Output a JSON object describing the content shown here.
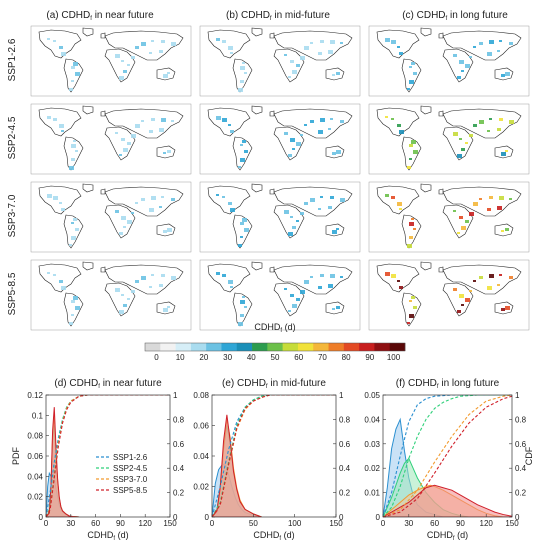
{
  "columns": [
    "(a) CDHD",
    "(b) CDHD",
    "(c) CDHD"
  ],
  "column_suffix": [
    " in near future",
    " in mid-future",
    " in long future"
  ],
  "column_sub": "f",
  "rows": [
    "SSP1-2.6",
    "SSP2-4.5",
    "SSP3-7.0",
    "SSP5-8.5"
  ],
  "colorbar": {
    "title": "CDHD",
    "title_sub": "f",
    "title_unit": " (d)",
    "ticks": [
      "0",
      "10",
      "20",
      "30",
      "40",
      "50",
      "60",
      "70",
      "80",
      "90",
      "100"
    ],
    "colors": [
      "#d9d9d9",
      "#f2f2f2",
      "#d6eef7",
      "#a9dcef",
      "#6cc2e3",
      "#2fa6d6",
      "#1b8fb8",
      "#2c9c4e",
      "#6cc04a",
      "#c6dc3a",
      "#f1e23a",
      "#f4b73a",
      "#ee7d28",
      "#e34a24",
      "#c81e1e",
      "#8e0f12",
      "#5a0808"
    ]
  },
  "maps": {
    "intensity": [
      [
        1,
        1,
        2
      ],
      [
        1,
        2,
        5
      ],
      [
        1,
        2,
        7
      ],
      [
        1,
        2,
        9
      ]
    ]
  },
  "chart_data": [
    {
      "type": "line",
      "title": "(d) CDHD",
      "title_sub": "f",
      "title_suffix": " in near future",
      "xlabel": "CDHD",
      "xlabel_sub": "f",
      "xlabel_unit": " (d)",
      "ylabel_left": "PDF",
      "ylabel_right": "",
      "xlim": [
        0,
        150
      ],
      "ylim": [
        0,
        0.12
      ],
      "y2lim": [
        0,
        1
      ],
      "xticks": [
        "0",
        "30",
        "60",
        "90",
        "120",
        "150"
      ],
      "yticks": [
        "0",
        "0.02",
        "0.04",
        "0.06",
        "0.08",
        "0.1",
        "0.12"
      ],
      "y2ticks": [
        "0",
        "0.2",
        "0.4",
        "0.6",
        "0.8",
        "1"
      ],
      "legend_position": "center-right",
      "series": [
        {
          "name": "SSP1-2.6",
          "color": "#2a8fd0",
          "fill": "#9ecbef",
          "pdf": {
            "x": [
              0,
              2,
              4,
              6,
              8,
              10,
              12,
              14,
              16,
              18,
              20,
              24,
              28,
              32,
              40
            ],
            "y": [
              0,
              0.03,
              0.043,
              0.04,
              0.045,
              0.038,
              0.028,
              0.02,
              0.012,
              0.008,
              0.005,
              0.003,
              0.001,
              0.0005,
              0
            ]
          },
          "cdf": {
            "x": [
              0,
              5,
              10,
              15,
              20,
              25,
              30,
              40,
              50,
              60,
              150
            ],
            "y": [
              0,
              0.2,
              0.45,
              0.65,
              0.8,
              0.9,
              0.95,
              0.99,
              1,
              1,
              1
            ]
          }
        },
        {
          "name": "SSP2-4.5",
          "color": "#2fd07a",
          "fill": "#9ee8b8",
          "pdf": {
            "x": [
              0,
              4,
              6,
              8,
              10,
              12,
              14,
              16,
              18,
              20,
              24,
              28,
              32,
              40
            ],
            "y": [
              0,
              0.005,
              0.03,
              0.075,
              0.09,
              0.06,
              0.035,
              0.018,
              0.01,
              0.006,
              0.003,
              0.001,
              0.0005,
              0
            ]
          },
          "cdf": {
            "x": [
              0,
              5,
              10,
              15,
              20,
              25,
              30,
              40,
              50,
              60,
              150
            ],
            "y": [
              0,
              0.08,
              0.35,
              0.62,
              0.8,
              0.9,
              0.95,
              0.99,
              1,
              1,
              1
            ]
          }
        },
        {
          "name": "SSP3-7.0",
          "color": "#f29a2e",
          "fill": "#f6c79a",
          "pdf": {
            "x": [
              0,
              4,
              6,
              8,
              10,
              12,
              14,
              16,
              18,
              20,
              24,
              28,
              32,
              40
            ],
            "y": [
              0,
              0.004,
              0.03,
              0.08,
              0.1,
              0.065,
              0.035,
              0.018,
              0.01,
              0.006,
              0.003,
              0.001,
              0.0005,
              0
            ]
          },
          "cdf": {
            "x": [
              0,
              5,
              10,
              15,
              20,
              25,
              30,
              40,
              50,
              60,
              150
            ],
            "y": [
              0,
              0.07,
              0.33,
              0.6,
              0.78,
              0.89,
              0.95,
              0.99,
              1,
              1,
              1
            ]
          }
        },
        {
          "name": "SSP5-8.5",
          "color": "#d0202a",
          "fill": "#f08a8a",
          "pdf": {
            "x": [
              0,
              4,
              6,
              8,
              10,
              12,
              14,
              16,
              18,
              20,
              24,
              28,
              32,
              40
            ],
            "y": [
              0,
              0.004,
              0.03,
              0.085,
              0.108,
              0.07,
              0.038,
              0.02,
              0.01,
              0.006,
              0.003,
              0.001,
              0.0005,
              0
            ]
          },
          "cdf": {
            "x": [
              0,
              5,
              10,
              15,
              20,
              25,
              30,
              40,
              50,
              60,
              150
            ],
            "y": [
              0,
              0.06,
              0.32,
              0.58,
              0.77,
              0.88,
              0.94,
              0.99,
              1,
              1,
              1
            ]
          }
        }
      ]
    },
    {
      "type": "line",
      "title": "(e) CDHD",
      "title_sub": "f",
      "title_suffix": " in mid-future",
      "xlabel": "CDHD",
      "xlabel_sub": "f",
      "xlabel_unit": " (d)",
      "ylabel_left": "",
      "ylabel_right": "",
      "xlim": [
        0,
        150
      ],
      "ylim": [
        0,
        0.08
      ],
      "y2lim": [
        0,
        1
      ],
      "xticks": [
        "0",
        "50",
        "100",
        "150"
      ],
      "yticks": [
        "0",
        "0.02",
        "0.04",
        "0.06",
        "0.08"
      ],
      "y2ticks": [
        "0",
        "0.2",
        "0.4",
        "0.6",
        "0.8",
        "1"
      ],
      "series": [
        {
          "name": "SSP1-2.6",
          "color": "#2a8fd0",
          "fill": "#9ecbef",
          "pdf": {
            "x": [
              0,
              4,
              8,
              12,
              16,
              20,
              24,
              28,
              32,
              36,
              40,
              50,
              60
            ],
            "y": [
              0,
              0.022,
              0.031,
              0.034,
              0.035,
              0.028,
              0.02,
              0.013,
              0.008,
              0.005,
              0.003,
              0.001,
              0
            ]
          },
          "cdf": {
            "x": [
              0,
              10,
              20,
              30,
              40,
              50,
              60,
              70,
              80,
              150
            ],
            "y": [
              0,
              0.25,
              0.55,
              0.78,
              0.9,
              0.96,
              0.99,
              1,
              1,
              1
            ]
          }
        },
        {
          "name": "SSP2-4.5",
          "color": "#2fd07a",
          "fill": "#9ee8b8",
          "pdf": {
            "x": [
              0,
              6,
              10,
              14,
              18,
              22,
              26,
              30,
              34,
              40,
              50,
              60
            ],
            "y": [
              0,
              0.005,
              0.02,
              0.045,
              0.06,
              0.048,
              0.03,
              0.018,
              0.01,
              0.005,
              0.002,
              0
            ]
          },
          "cdf": {
            "x": [
              0,
              10,
              20,
              30,
              40,
              50,
              60,
              70,
              80,
              150
            ],
            "y": [
              0,
              0.12,
              0.45,
              0.75,
              0.9,
              0.96,
              0.99,
              1,
              1,
              1
            ]
          }
        },
        {
          "name": "SSP3-7.0",
          "color": "#f29a2e",
          "fill": "#f6c79a",
          "pdf": {
            "x": [
              0,
              6,
              10,
              14,
              18,
              22,
              26,
              30,
              34,
              40,
              50,
              60
            ],
            "y": [
              0,
              0.004,
              0.018,
              0.045,
              0.064,
              0.052,
              0.032,
              0.019,
              0.011,
              0.005,
              0.002,
              0
            ]
          },
          "cdf": {
            "x": [
              0,
              10,
              20,
              30,
              40,
              50,
              60,
              70,
              80,
              150
            ],
            "y": [
              0,
              0.1,
              0.42,
              0.72,
              0.88,
              0.95,
              0.98,
              1,
              1,
              1
            ]
          }
        },
        {
          "name": "SSP5-8.5",
          "color": "#d0202a",
          "fill": "#f08a8a",
          "pdf": {
            "x": [
              0,
              6,
              10,
              14,
              18,
              22,
              26,
              30,
              34,
              40,
              50,
              60
            ],
            "y": [
              0,
              0.004,
              0.02,
              0.05,
              0.067,
              0.05,
              0.03,
              0.018,
              0.01,
              0.005,
              0.002,
              0
            ]
          },
          "cdf": {
            "x": [
              0,
              10,
              20,
              30,
              40,
              50,
              60,
              70,
              80,
              150
            ],
            "y": [
              0,
              0.1,
              0.43,
              0.73,
              0.89,
              0.95,
              0.98,
              1,
              1,
              1
            ]
          }
        }
      ]
    },
    {
      "type": "line",
      "title": "(f) CDHD",
      "title_sub": "f",
      "title_suffix": " in long future",
      "xlabel": "CDHD",
      "xlabel_sub": "f",
      "xlabel_unit": " (d)",
      "ylabel_left": "",
      "ylabel_right": "CDF",
      "xlim": [
        0,
        150
      ],
      "ylim": [
        0,
        0.05
      ],
      "y2lim": [
        0,
        1
      ],
      "xticks": [
        "0",
        "30",
        "60",
        "90",
        "120",
        "150"
      ],
      "yticks": [
        "0",
        "0.01",
        "0.02",
        "0.03",
        "0.04",
        "0.05"
      ],
      "y2ticks": [
        "0",
        "0.2",
        "0.4",
        "0.6",
        "0.8",
        "1"
      ],
      "series": [
        {
          "name": "SSP1-2.6",
          "color": "#2a8fd0",
          "fill": "#9ecbef",
          "pdf": {
            "x": [
              0,
              5,
              10,
              15,
              20,
              25,
              30,
              35,
              40,
              50,
              60,
              70
            ],
            "y": [
              0,
              0.012,
              0.028,
              0.036,
              0.04,
              0.027,
              0.016,
              0.009,
              0.005,
              0.002,
              0.001,
              0
            ]
          },
          "cdf": {
            "x": [
              0,
              10,
              20,
              30,
              40,
              50,
              60,
              80,
              150
            ],
            "y": [
              0,
              0.2,
              0.5,
              0.78,
              0.92,
              0.97,
              0.99,
              1,
              1
            ]
          }
        },
        {
          "name": "SSP2-4.5",
          "color": "#2fd07a",
          "fill": "#9ee8b8",
          "pdf": {
            "x": [
              0,
              10,
              20,
              25,
              30,
              35,
              40,
              50,
              60,
              70,
              80,
              90,
              100
            ],
            "y": [
              0,
              0.008,
              0.018,
              0.022,
              0.024,
              0.02,
              0.016,
              0.01,
              0.006,
              0.003,
              0.0015,
              0.0005,
              0
            ]
          },
          "cdf": {
            "x": [
              0,
              10,
              20,
              30,
              40,
              50,
              60,
              70,
              80,
              90,
              110,
              150
            ],
            "y": [
              0,
              0.08,
              0.25,
              0.48,
              0.66,
              0.8,
              0.89,
              0.94,
              0.97,
              0.99,
              1,
              1
            ]
          }
        },
        {
          "name": "SSP3-7.0",
          "color": "#f29a2e",
          "fill": "#f6c79a",
          "pdf": {
            "x": [
              0,
              10,
              20,
              30,
              40,
              50,
              55,
              60,
              70,
              80,
              90,
              100,
              110,
              120,
              130,
              140
            ],
            "y": [
              0,
              0.003,
              0.006,
              0.009,
              0.011,
              0.0125,
              0.013,
              0.0125,
              0.011,
              0.009,
              0.007,
              0.005,
              0.003,
              0.0015,
              0.0005,
              0
            ]
          },
          "cdf": {
            "x": [
              0,
              20,
              40,
              60,
              80,
              100,
              120,
              140,
              150
            ],
            "y": [
              0,
              0.06,
              0.22,
              0.45,
              0.66,
              0.84,
              0.95,
              0.99,
              1
            ]
          }
        },
        {
          "name": "SSP5-8.5",
          "color": "#d0202a",
          "fill": "#f08a8a",
          "pdf": {
            "x": [
              0,
              10,
              20,
              30,
              40,
              50,
              60,
              70,
              80,
              90,
              100,
              110,
              120,
              130,
              140,
              150
            ],
            "y": [
              0,
              0.002,
              0.004,
              0.006,
              0.009,
              0.012,
              0.013,
              0.012,
              0.011,
              0.009,
              0.007,
              0.005,
              0.0035,
              0.002,
              0.001,
              0.0003
            ]
          },
          "cdf": {
            "x": [
              0,
              20,
              40,
              60,
              80,
              100,
              120,
              140,
              150
            ],
            "y": [
              0,
              0.04,
              0.15,
              0.36,
              0.58,
              0.77,
              0.9,
              0.97,
              0.99
            ]
          }
        }
      ]
    }
  ]
}
